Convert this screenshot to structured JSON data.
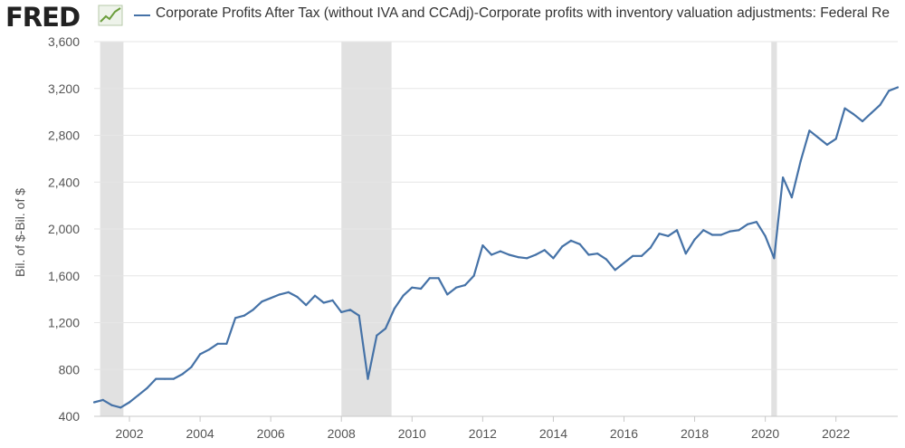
{
  "header": {
    "logo_text": "FRED",
    "logo_icon": "chart-line-icon",
    "legend_label": "Corporate Profits After Tax (without IVA and CCAdj)-Corporate profits with inventory valuation adjustments: Federal Re"
  },
  "colors": {
    "series": "#4572a7",
    "recession": "#e1e1e1",
    "grid": "#e6e6e6",
    "axis_text": "#555555",
    "logo_line": "#6b9e3c"
  },
  "chart_data": {
    "type": "line",
    "title": "",
    "xlabel": "",
    "ylabel": "Bil. of $-Bil. of $",
    "xlim": [
      2001.0,
      2023.75
    ],
    "ylim": [
      400,
      3600
    ],
    "y_ticks": [
      400,
      800,
      1200,
      1600,
      2000,
      2400,
      2800,
      3200,
      3600
    ],
    "y_tick_labels": [
      "400",
      "800",
      "1,200",
      "1,600",
      "2,000",
      "2,400",
      "2,800",
      "3,200",
      "3,600"
    ],
    "x_ticks": [
      2002,
      2004,
      2006,
      2008,
      2010,
      2012,
      2014,
      2016,
      2018,
      2020,
      2022
    ],
    "x_tick_labels": [
      "2002",
      "2004",
      "2006",
      "2008",
      "2010",
      "2012",
      "2014",
      "2016",
      "2018",
      "2020",
      "2022"
    ],
    "recessions": [
      [
        2001.17,
        2001.83
      ],
      [
        2008.0,
        2009.42
      ],
      [
        2020.17,
        2020.33
      ]
    ],
    "series": [
      {
        "name": "Corporate Profits After Tax (without IVA and CCAdj)-Corporate profits with inventory valuation adjustments: Federal Re",
        "x": [
          2001.0,
          2001.25,
          2001.5,
          2001.75,
          2002.0,
          2002.25,
          2002.5,
          2002.75,
          2003.0,
          2003.25,
          2003.5,
          2003.75,
          2004.0,
          2004.25,
          2004.5,
          2004.75,
          2005.0,
          2005.25,
          2005.5,
          2005.75,
          2006.0,
          2006.25,
          2006.5,
          2006.75,
          2007.0,
          2007.25,
          2007.5,
          2007.75,
          2008.0,
          2008.25,
          2008.5,
          2008.75,
          2009.0,
          2009.25,
          2009.5,
          2009.75,
          2010.0,
          2010.25,
          2010.5,
          2010.75,
          2011.0,
          2011.25,
          2011.5,
          2011.75,
          2012.0,
          2012.25,
          2012.5,
          2012.75,
          2013.0,
          2013.25,
          2013.5,
          2013.75,
          2014.0,
          2014.25,
          2014.5,
          2014.75,
          2015.0,
          2015.25,
          2015.5,
          2015.75,
          2016.0,
          2016.25,
          2016.5,
          2016.75,
          2017.0,
          2017.25,
          2017.5,
          2017.75,
          2018.0,
          2018.25,
          2018.5,
          2018.75,
          2019.0,
          2019.25,
          2019.5,
          2019.75,
          2020.0,
          2020.25,
          2020.5,
          2020.75,
          2021.0,
          2021.25,
          2021.5,
          2021.75,
          2022.0,
          2022.25,
          2022.5,
          2022.75,
          2023.0,
          2023.25,
          2023.5,
          2023.75
        ],
        "values": [
          520,
          540,
          495,
          475,
          520,
          580,
          640,
          720,
          720,
          720,
          760,
          820,
          930,
          970,
          1020,
          1020,
          1240,
          1260,
          1310,
          1380,
          1410,
          1440,
          1460,
          1420,
          1350,
          1430,
          1370,
          1390,
          1290,
          1310,
          1260,
          720,
          1090,
          1150,
          1320,
          1430,
          1500,
          1490,
          1580,
          1580,
          1440,
          1500,
          1520,
          1600,
          1860,
          1780,
          1810,
          1780,
          1760,
          1750,
          1780,
          1820,
          1750,
          1850,
          1900,
          1870,
          1780,
          1790,
          1740,
          1650,
          1710,
          1770,
          1770,
          1840,
          1960,
          1940,
          1990,
          1790,
          1910,
          1990,
          1950,
          1950,
          1980,
          1990,
          2040,
          2060,
          1940,
          1750,
          2440,
          2270,
          2580,
          2840,
          2780,
          2720,
          2770,
          3030,
          2980,
          2920,
          2990,
          3060,
          3180,
          3210
        ]
      }
    ]
  }
}
